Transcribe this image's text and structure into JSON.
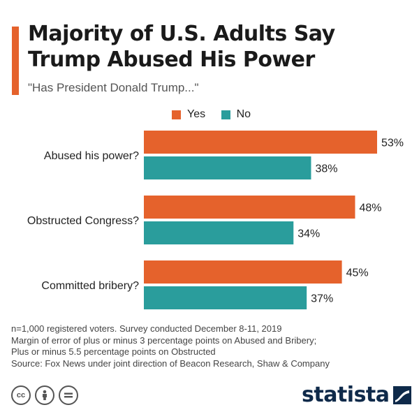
{
  "header": {
    "title_line1": "Majority of U.S. Adults Say",
    "title_line2": "Trump Abused His Power",
    "subtitle": "\"Has President Donald Trump...\""
  },
  "colors": {
    "yes": "#e5622c",
    "no": "#2a9d9c",
    "accent": "#e5622c"
  },
  "chart_data": {
    "type": "bar",
    "orientation": "horizontal",
    "categories": [
      "Abused his power?",
      "Obstructed Congress?",
      "Committed bribery?"
    ],
    "series": [
      {
        "name": "Yes",
        "values": [
          53,
          48,
          45
        ]
      },
      {
        "name": "No",
        "values": [
          38,
          34,
          37
        ]
      }
    ],
    "value_suffix": "%",
    "xlim": [
      0,
      100
    ],
    "legend_position": "top",
    "grid": false
  },
  "footnotes": [
    "n=1,000 registered voters. Survey conducted December 8-11, 2019",
    "Margin of error of plus or minus 3 percentage points on Abused and Bribery;",
    "Plus or minus 5.5 percentage points on Obstructed",
    "Source: Fox News under joint direction of Beacon Research, Shaw & Company"
  ],
  "license_icons": [
    "cc",
    "attribution",
    "no-derivatives"
  ],
  "brand": {
    "name": "statista",
    "icon": "statista-logo-icon"
  }
}
